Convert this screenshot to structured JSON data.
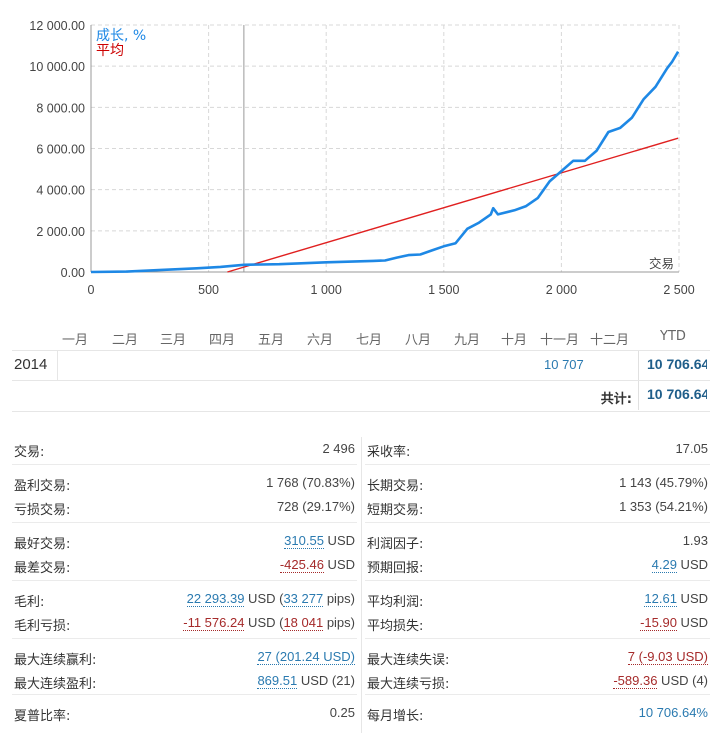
{
  "chart_data": {
    "type": "line",
    "xlabel": "交易",
    "legend": [
      "成长, %",
      "平均"
    ],
    "legend_colors": [
      "#1e88e5",
      "#cc0000"
    ],
    "xlim": [
      0,
      2500
    ],
    "ylim": [
      0,
      12000
    ],
    "xticks": [
      "0",
      "500",
      "1 000",
      "1 500",
      "2 000",
      "2 500"
    ],
    "yticks": [
      "0.00",
      "2 000.00",
      "4 000.00",
      "6 000.00",
      "8 000.00",
      "10 000.00",
      "12 000.00"
    ],
    "marker_x": 650,
    "series": [
      {
        "name": "成长, %",
        "x": [
          0,
          150,
          300,
          450,
          550,
          650,
          800,
          1000,
          1200,
          1250,
          1300,
          1350,
          1400,
          1450,
          1500,
          1550,
          1600,
          1650,
          1700,
          1710,
          1730,
          1800,
          1850,
          1900,
          1950,
          2000,
          2050,
          2100,
          2150,
          2200,
          2250,
          2300,
          2350,
          2400,
          2450,
          2470,
          2496
        ],
        "values": [
          0,
          20,
          100,
          180,
          250,
          350,
          380,
          470,
          540,
          560,
          700,
          820,
          850,
          1050,
          1250,
          1400,
          2100,
          2400,
          2800,
          3100,
          2800,
          3000,
          3200,
          3600,
          4400,
          4900,
          5400,
          5400,
          5900,
          6800,
          7000,
          7500,
          8400,
          9000,
          9900,
          10200,
          10706
        ]
      },
      {
        "name": "平均",
        "x": [
          580,
          2496
        ],
        "values": [
          0,
          6500
        ]
      }
    ]
  },
  "monthly": {
    "months": [
      "一月",
      "二月",
      "三月",
      "四月",
      "五月",
      "六月",
      "七月",
      "八月",
      "九月",
      "十月",
      "十一月",
      "十二月",
      "YTD"
    ],
    "year": "2014",
    "values": {
      "十一月": "10 707"
    },
    "ytd": "10 706.64",
    "total_label": "共计:",
    "total": "10 706.64"
  },
  "stats": {
    "left": [
      {
        "label": "交易:",
        "value": "2 496"
      },
      {
        "label": "盈利交易:",
        "value": "1 768 (70.83%)"
      },
      {
        "label": "亏损交易:",
        "value": "728 (29.17%)"
      },
      {
        "label": "最好交易:",
        "value": "310.55",
        "unit": " USD"
      },
      {
        "label": "最差交易:",
        "value": "-425.46",
        "unit": " USD"
      },
      {
        "label": "毛利:",
        "value": "22 293.39",
        "unit": " USD (",
        "value2": "33 277",
        "unit2": " pips)"
      },
      {
        "label": "毛利亏损:",
        "value": "-11 576.24",
        "unit": " USD (",
        "value2": "18 041",
        "unit2": " pips)"
      },
      {
        "label": "最大连续赢利:",
        "value": "27 (201.24 USD)"
      },
      {
        "label": "最大连续盈利:",
        "value": "869.51",
        "unit": " USD (21)"
      },
      {
        "label": "夏普比率:",
        "value": "0.25"
      }
    ],
    "right": [
      {
        "label": "采收率:",
        "value": "17.05"
      },
      {
        "label": "长期交易:",
        "value": "1 143 (45.79%)"
      },
      {
        "label": "短期交易:",
        "value": "1 353 (54.21%)"
      },
      {
        "label": "利润因子:",
        "value": "1.93"
      },
      {
        "label": "预期回报:",
        "value": "4.29",
        "unit": " USD"
      },
      {
        "label": "平均利润:",
        "value": "12.61",
        "unit": " USD"
      },
      {
        "label": "平均损失:",
        "value": "-15.90",
        "unit": " USD"
      },
      {
        "label": "最大连续失误:",
        "value": "7 (-9.03 USD)"
      },
      {
        "label": "最大连续亏损:",
        "value": "-589.36",
        "unit": " USD (4)"
      },
      {
        "label": "每月增长:",
        "value": "10 706.64%"
      }
    ]
  }
}
